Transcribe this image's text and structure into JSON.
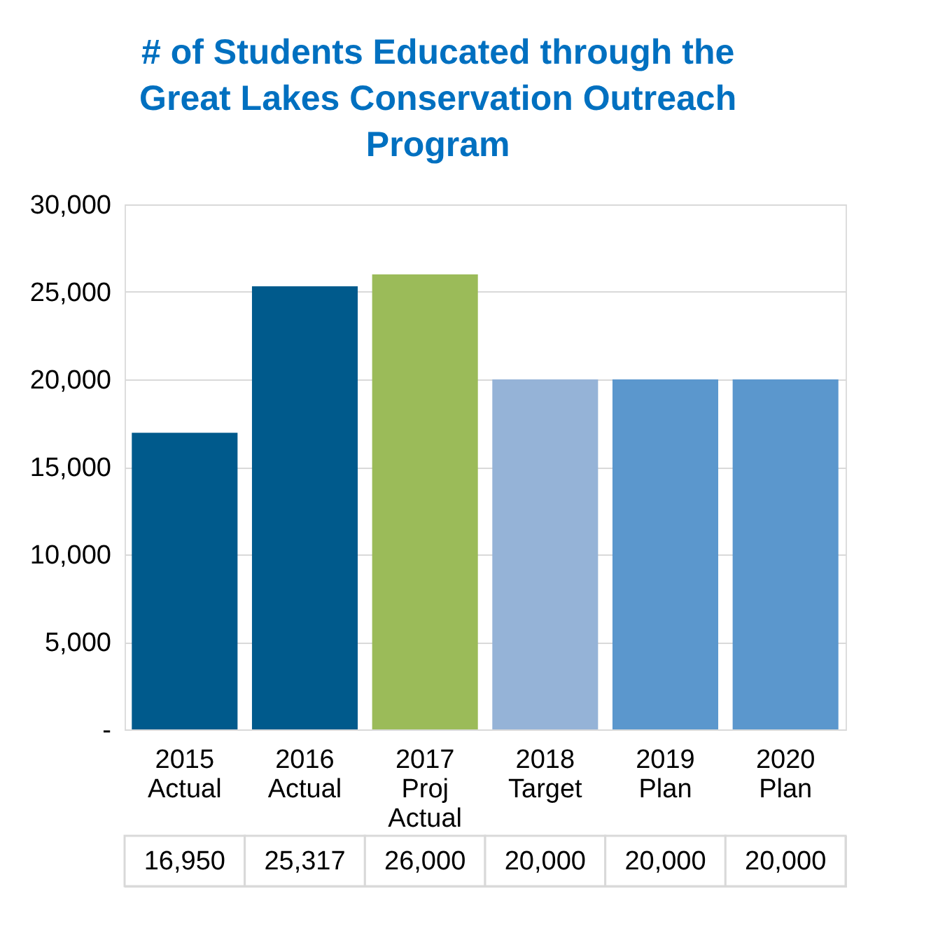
{
  "chart_data": {
    "type": "bar",
    "title": "# of Students Educated through the Great Lakes Conservation Outreach Program",
    "categories": [
      "2015 Actual",
      "2016 Actual",
      "2017 Proj Actual",
      "2018 Target",
      "2019 Plan",
      "2020 Plan"
    ],
    "values": [
      16950,
      25317,
      26000,
      20000,
      20000,
      20000
    ],
    "colors": [
      "#005a8c",
      "#005a8c",
      "#9bbb59",
      "#95b3d7",
      "#5b97cd",
      "#5b97cd"
    ],
    "ylim": [
      0,
      30000
    ],
    "yticks": [
      {
        "value": 0,
        "label": "-"
      },
      {
        "value": 5000,
        "label": "5,000"
      },
      {
        "value": 10000,
        "label": "10,000"
      },
      {
        "value": 15000,
        "label": "15,000"
      },
      {
        "value": 20000,
        "label": "20,000"
      },
      {
        "value": 25000,
        "label": "25,000"
      },
      {
        "value": 30000,
        "label": "30,000"
      }
    ],
    "value_labels": [
      "16,950",
      "25,317",
      "26,000",
      "20,000",
      "20,000",
      "20,000"
    ],
    "grid": "y",
    "legend": false
  }
}
